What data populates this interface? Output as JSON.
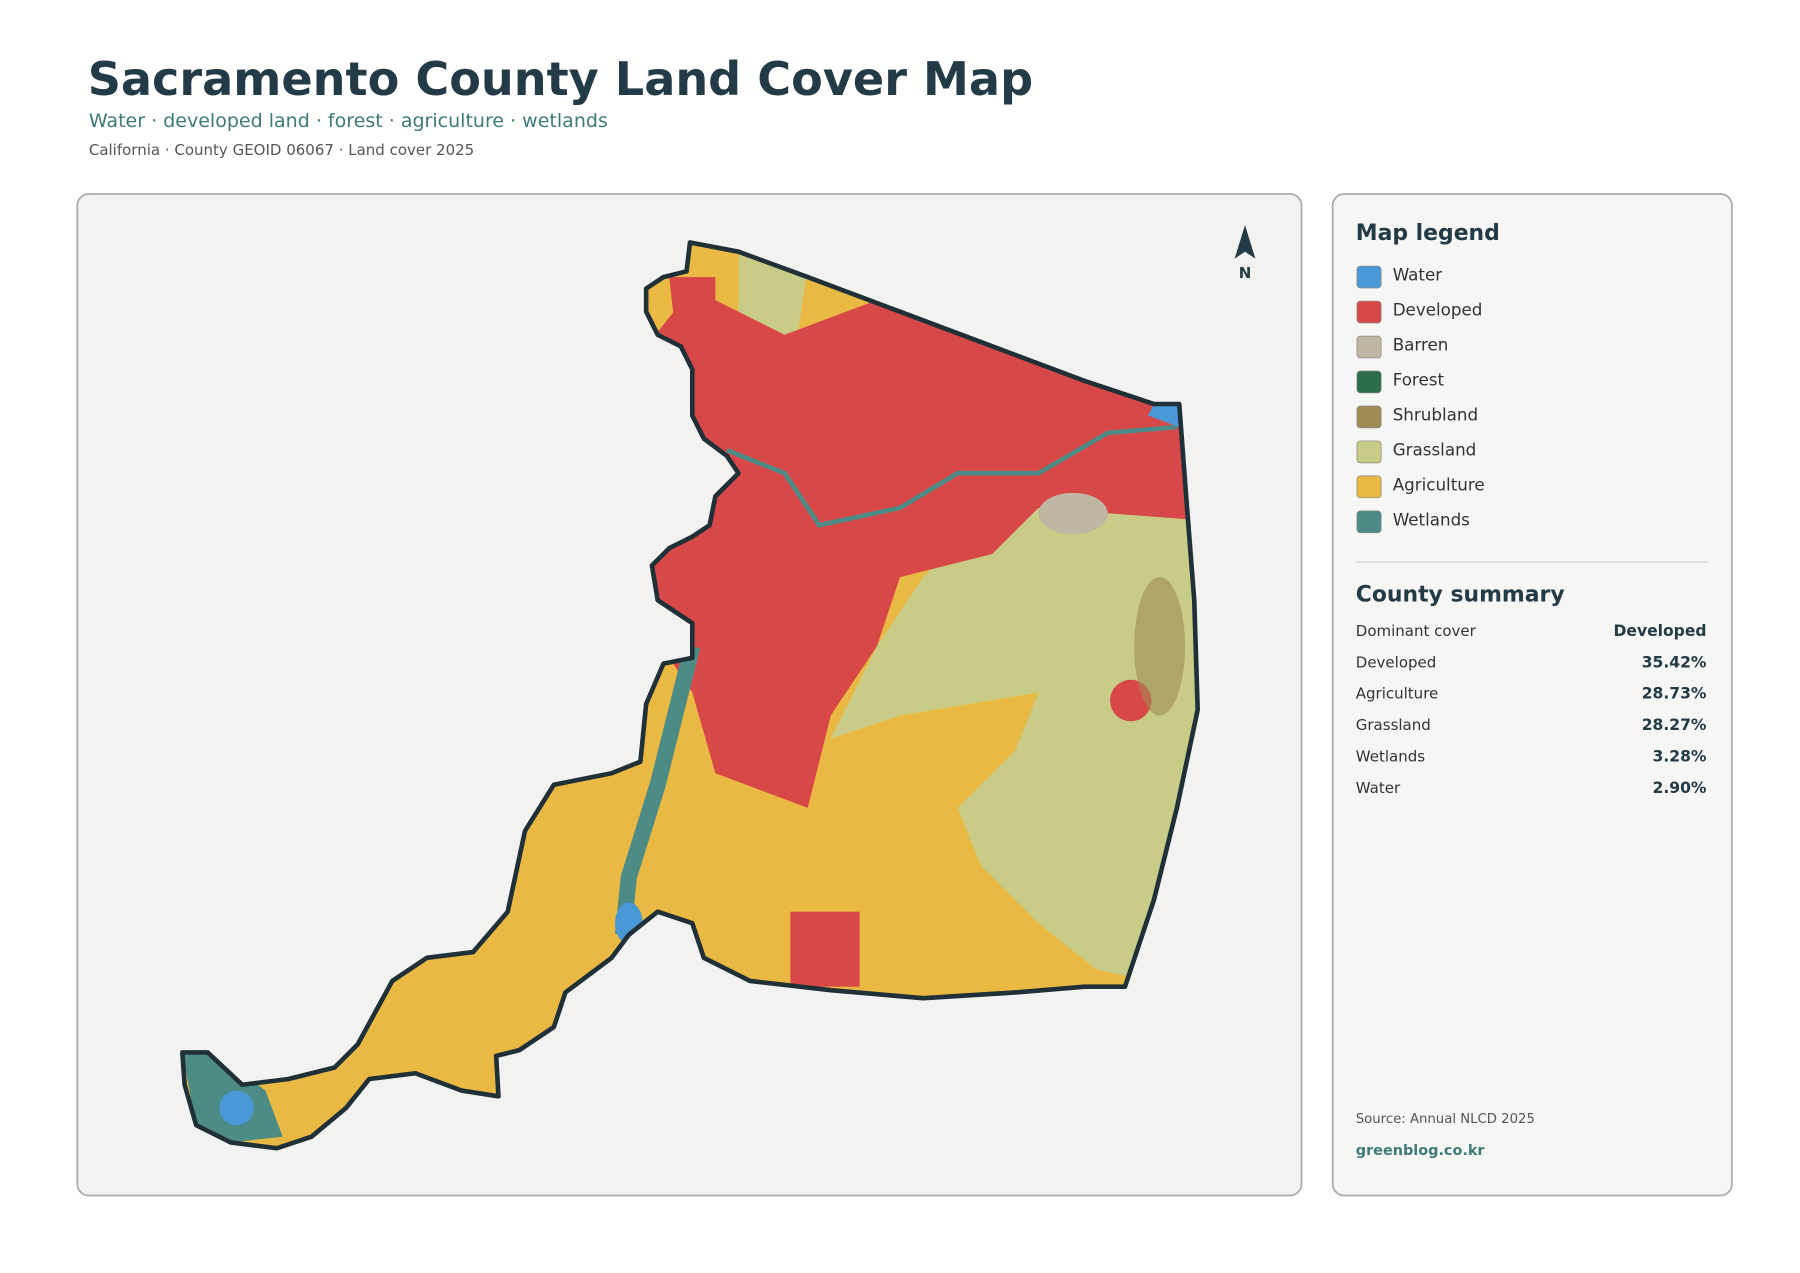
{
  "header": {
    "title": "Sacramento County Land Cover Map",
    "subtitle": "Water · developed land · forest · agriculture · wetlands",
    "meta": "California · County GEOID 06067 · Land cover 2025"
  },
  "map": {
    "north_label": "N"
  },
  "legend": {
    "title": "Map legend",
    "items": [
      {
        "label": "Water",
        "color": "#4a98d6"
      },
      {
        "label": "Developed",
        "color": "#d94848"
      },
      {
        "label": "Barren",
        "color": "#bfb6a3"
      },
      {
        "label": "Forest",
        "color": "#2b6e48"
      },
      {
        "label": "Shrubland",
        "color": "#a08a55"
      },
      {
        "label": "Grassland",
        "color": "#c8cc86"
      },
      {
        "label": "Agriculture",
        "color": "#eab943"
      },
      {
        "label": "Wetlands",
        "color": "#4d8c86"
      }
    ]
  },
  "summary": {
    "title": "County summary",
    "rows": [
      [
        "Dominant cover",
        "Developed"
      ],
      [
        "Developed",
        "35.42%"
      ],
      [
        "Agriculture",
        "28.73%"
      ],
      [
        "Grassland",
        "28.27%"
      ],
      [
        "Wetlands",
        "3.28%"
      ],
      [
        "Water",
        "2.90%"
      ]
    ]
  },
  "footer": {
    "source": "Source: Annual NLCD 2025",
    "site": "greenblog.co.kr"
  }
}
